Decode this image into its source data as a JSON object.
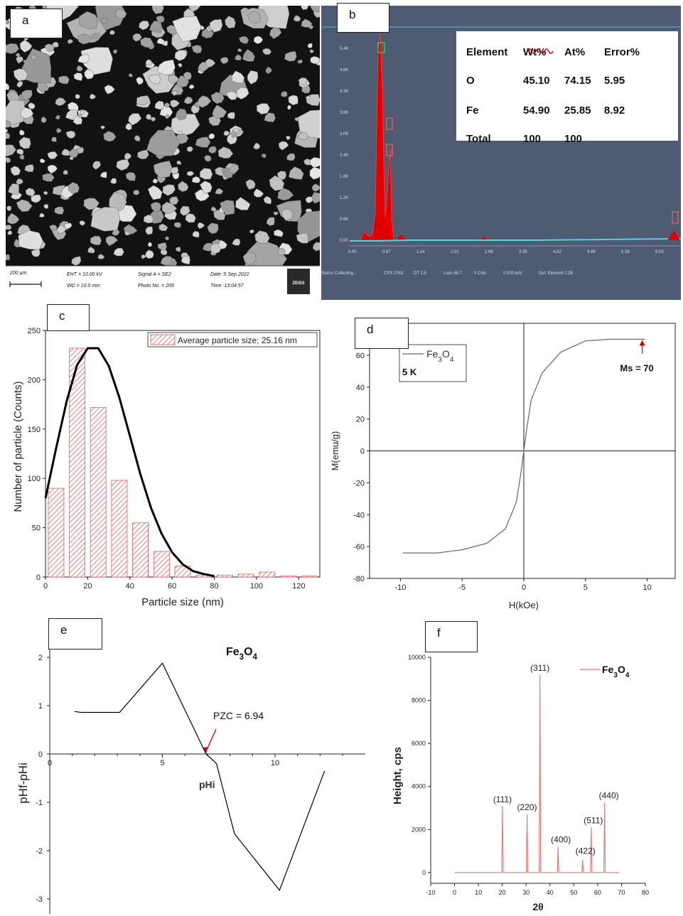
{
  "panels": {
    "a": {
      "label": "a"
    },
    "b": {
      "label": "b"
    },
    "c": {
      "label": "c"
    },
    "d": {
      "label": "d"
    },
    "e": {
      "label": "e"
    },
    "f": {
      "label": "f"
    }
  },
  "sem": {
    "scale_bar": "200 µm",
    "eht": "EHT = 10.00 kV",
    "wd": "WD = 10.0 mm",
    "signal": "Signal A = SE2",
    "photo": "Photo No. = 209",
    "date": "Date :5 Sep 2022",
    "time": "Time :13:04:57",
    "logo": "ZEISS",
    "colors": {
      "background": "#121212",
      "particle": "#b8b8b8",
      "info_bar": "#ffffff"
    }
  },
  "eds": {
    "table": {
      "headers": [
        "Element",
        "Wt%",
        "At%",
        "Error%"
      ],
      "rows": [
        [
          "O",
          "45.10",
          "74.15",
          "5.95"
        ],
        [
          "Fe",
          "54.90",
          "25.85",
          "8.92"
        ],
        [
          "Total",
          "100",
          "100",
          ""
        ]
      ]
    },
    "status": [
      "Status Collecting...",
      "CPS 2763",
      "DT 2.5",
      "Lsec 48.7",
      "0 Cnts",
      "0.000 keV",
      "Det: Element C2B"
    ],
    "colors": {
      "background": "#4f5b72",
      "spectrum": "#e00000",
      "baseline": "#57d2d8"
    }
  },
  "chart_data": [
    {
      "panel": "c",
      "type": "bar",
      "categories": [
        5,
        15,
        25,
        35,
        45,
        55,
        65,
        75,
        85,
        95,
        105,
        115,
        125
      ],
      "values": [
        90,
        232,
        172,
        98,
        55,
        26,
        11,
        2,
        2,
        3,
        5,
        1,
        1
      ],
      "fit_curve": {
        "type": "line",
        "x": [
          0,
          5,
          10,
          15,
          20,
          25,
          30,
          35,
          40,
          45,
          50,
          55,
          60,
          65,
          70,
          75,
          80
        ],
        "y": [
          80,
          130,
          178,
          215,
          232,
          232,
          214,
          182,
          143,
          104,
          70,
          44,
          25,
          13,
          6,
          3,
          1
        ]
      },
      "legend": [
        "Average particle size; 25.16 nm"
      ],
      "legend_position": "top-right",
      "xlabel": "Particle size (nm)",
      "ylabel": "Number of particle (Counts)",
      "xlim": [
        0,
        130
      ],
      "ylim": [
        0,
        250
      ],
      "xticks": [
        0,
        20,
        40,
        60,
        80,
        100,
        120
      ],
      "yticks": [
        0,
        50,
        100,
        150,
        200,
        250
      ],
      "colors": {
        "bar": "#e06060",
        "curve": "#000000"
      }
    },
    {
      "panel": "d",
      "type": "line",
      "x": [
        -9.8,
        -7,
        -5,
        -3,
        -1.5,
        -0.6,
        -0.2,
        0,
        0.2,
        0.6,
        1.5,
        3,
        5,
        7,
        9.8
      ],
      "y": [
        -64,
        -64,
        -62,
        -58,
        -49,
        -32,
        -12,
        0,
        12,
        32,
        49,
        62,
        69,
        70,
        70
      ],
      "series": [
        {
          "name": "Fe3O4"
        }
      ],
      "legend": [
        "Fe3O4",
        "5 K"
      ],
      "legend_position": "top-left",
      "annotation": "Ms = 70",
      "xlabel": "H(kOe)",
      "ylabel": "M(emu/g)",
      "xlim": [
        -12.5,
        12.5
      ],
      "ylim": [
        -80,
        80
      ],
      "xticks": [
        -10,
        -5,
        0,
        5,
        10
      ],
      "yticks": [
        -80,
        -60,
        -40,
        -20,
        0,
        20,
        40,
        60,
        80
      ],
      "colors": {
        "line": "#666666"
      }
    },
    {
      "panel": "e",
      "type": "line",
      "x": [
        1.1,
        1.4,
        3.1,
        5,
        6.94,
        7.4,
        8.2,
        10.2,
        12.2
      ],
      "y": [
        0.88,
        0.86,
        0.86,
        1.88,
        0,
        -0.2,
        -1.65,
        -2.82,
        -0.35
      ],
      "annotation": "PZC = 6.94",
      "title": "Fe3O4",
      "xlabel": "pHi",
      "ylabel": "pHf-pHi",
      "xlim": [
        0,
        14
      ],
      "ylim": [
        -3.3,
        2.2
      ],
      "xticks": [
        0,
        5,
        10
      ],
      "yticks": [
        -3,
        -2,
        -1,
        0,
        1,
        2
      ],
      "colors": {
        "line": "#000000",
        "arrow": "#d00000"
      }
    },
    {
      "panel": "f",
      "type": "line",
      "x": [
        20.1,
        30.4,
        35.8,
        43.4,
        53.7,
        57.3,
        62.9
      ],
      "y": [
        3100,
        2700,
        9200,
        1200,
        600,
        2100,
        3250
      ],
      "peak_labels": [
        "(111)",
        "(220)",
        "(311)",
        "(400)",
        "(422)",
        "(511)",
        "(440)"
      ],
      "series": [
        {
          "name": "Fe3O4"
        }
      ],
      "legend_position": "top-right",
      "xlabel": "2θ",
      "ylabel": "Height, cps",
      "xlim": [
        -10,
        80
      ],
      "ylim": [
        -500,
        10000
      ],
      "xticks": [
        -10,
        0,
        10,
        20,
        30,
        40,
        50,
        60,
        70,
        80
      ],
      "yticks": [
        0,
        2000,
        4000,
        6000,
        8000,
        10000
      ],
      "colors": {
        "line": "#e07878"
      }
    }
  ]
}
